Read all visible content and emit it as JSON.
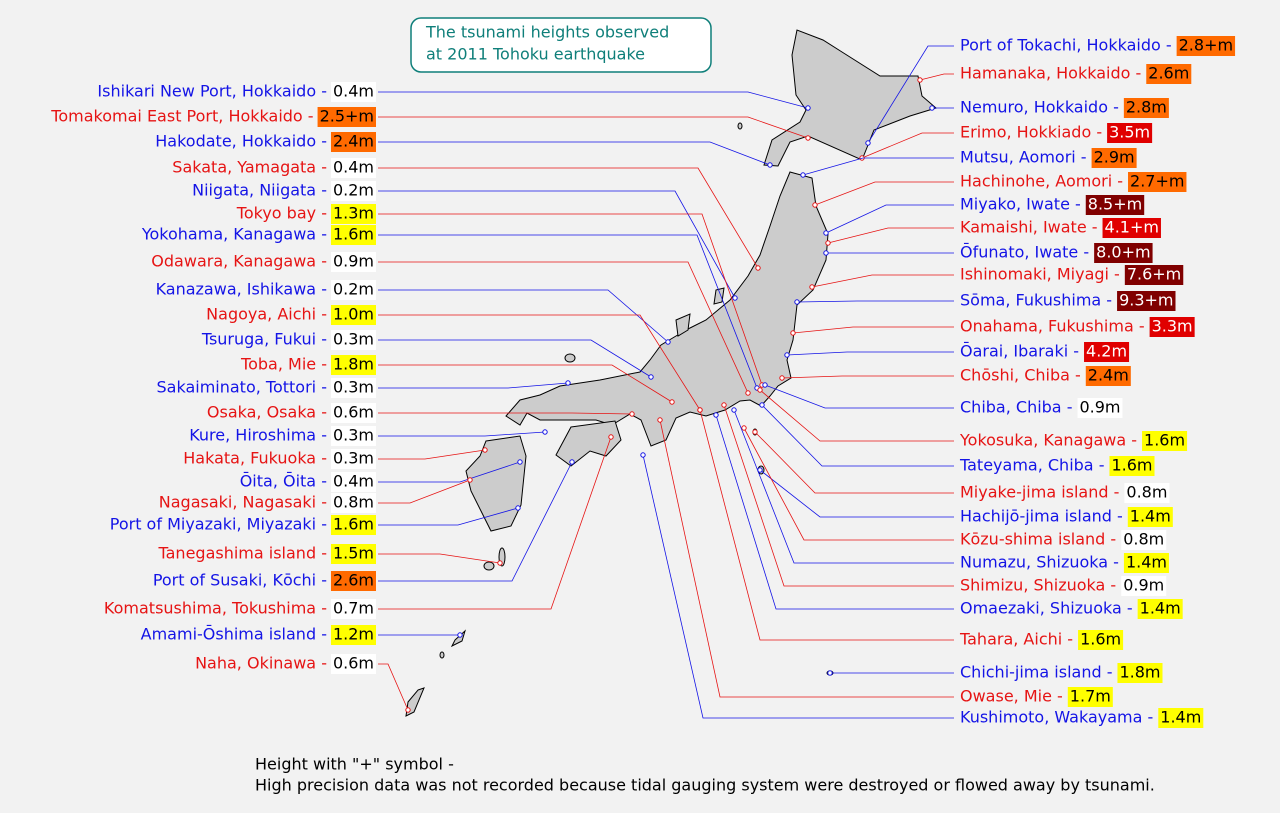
{
  "title": {
    "lines": [
      "The tsunami heights observed",
      "at 2011 Tohoku earthquake"
    ]
  },
  "left": [
    {
      "name": "Ishikari New Port, Hokkaido -",
      "height": "0.4m",
      "color": "#1414e6",
      "badge": "#ffffff"
    },
    {
      "name": "Tomakomai East Port, Hokkaido -",
      "height": "2.5+m",
      "color": "#e61414",
      "badge": "#ff6a00"
    },
    {
      "name": "Hakodate, Hokkaido -",
      "height": "2.4m",
      "color": "#1414e6",
      "badge": "#ff6a00"
    },
    {
      "name": "Sakata, Yamagata -",
      "height": "0.4m",
      "color": "#e61414",
      "badge": "#ffffff"
    },
    {
      "name": "Niigata, Niigata -",
      "height": "0.2m",
      "color": "#1414e6",
      "badge": "#ffffff"
    },
    {
      "name": "Tokyo bay -",
      "height": "1.3m",
      "color": "#e61414",
      "badge": "#ffff00"
    },
    {
      "name": "Yokohama, Kanagawa -",
      "height": "1.6m",
      "color": "#1414e6",
      "badge": "#ffff00"
    },
    {
      "name": "Odawara, Kanagawa -",
      "height": "0.9m",
      "color": "#e61414",
      "badge": "#ffffff"
    },
    {
      "name": "Kanazawa, Ishikawa -",
      "height": "0.2m",
      "color": "#1414e6",
      "badge": "#ffffff"
    },
    {
      "name": "Nagoya, Aichi -",
      "height": "1.0m",
      "color": "#e61414",
      "badge": "#ffff00"
    },
    {
      "name": "Tsuruga, Fukui -",
      "height": "0.3m",
      "color": "#1414e6",
      "badge": "#ffffff"
    },
    {
      "name": "Toba, Mie -",
      "height": "1.8m",
      "color": "#e61414",
      "badge": "#ffff00"
    },
    {
      "name": "Sakaiminato, Tottori -",
      "height": "0.3m",
      "color": "#1414e6",
      "badge": "#ffffff"
    },
    {
      "name": "Osaka, Osaka -",
      "height": "0.6m",
      "color": "#e61414",
      "badge": "#ffffff"
    },
    {
      "name": "Kure, Hiroshima -",
      "height": "0.3m",
      "color": "#1414e6",
      "badge": "#ffffff"
    },
    {
      "name": "Hakata, Fukuoka -",
      "height": "0.3m",
      "color": "#e61414",
      "badge": "#ffffff"
    },
    {
      "name": "Ōita, Ōita -",
      "height": "0.4m",
      "color": "#1414e6",
      "badge": "#ffffff"
    },
    {
      "name": "Nagasaki, Nagasaki -",
      "height": "0.8m",
      "color": "#e61414",
      "badge": "#ffffff"
    },
    {
      "name": "Port of Miyazaki, Miyazaki -",
      "height": "1.6m",
      "color": "#1414e6",
      "badge": "#ffff00"
    },
    {
      "name": "Tanegashima island -",
      "height": "1.5m",
      "color": "#e61414",
      "badge": "#ffff00"
    },
    {
      "name": "Port of Susaki, Kōchi -",
      "height": "2.6m",
      "color": "#1414e6",
      "badge": "#ff6a00"
    },
    {
      "name": "Komatsushima, Tokushima -",
      "height": "0.7m",
      "color": "#e61414",
      "badge": "#ffffff"
    },
    {
      "name": "Amami-Ōshima island -",
      "height": "1.2m",
      "color": "#1414e6",
      "badge": "#ffff00"
    },
    {
      "name": "Naha, Okinawa -",
      "height": "0.6m",
      "color": "#e61414",
      "badge": "#ffffff"
    }
  ],
  "right": [
    {
      "name": "Port of Tokachi, Hokkaido -",
      "height": "2.8+m",
      "color": "#1414e6",
      "badge": "#ff6a00"
    },
    {
      "name": "Hamanaka, Hokkaido -",
      "height": "2.6m",
      "color": "#e61414",
      "badge": "#ff6a00"
    },
    {
      "name": "Nemuro, Hokkaido -",
      "height": "2.8m",
      "color": "#1414e6",
      "badge": "#ff6a00"
    },
    {
      "name": "Erimo, Hokkiado -",
      "height": "3.5m",
      "color": "#e61414",
      "badge": "#e00000"
    },
    {
      "name": "Mutsu, Aomori -",
      "height": "2.9m",
      "color": "#1414e6",
      "badge": "#ff6a00"
    },
    {
      "name": "Hachinohe, Aomori -",
      "height": "2.7+m",
      "color": "#e61414",
      "badge": "#ff6a00"
    },
    {
      "name": "Miyako, Iwate -",
      "height": "8.5+m",
      "color": "#1414e6",
      "badge": "#800000"
    },
    {
      "name": "Kamaishi, Iwate -",
      "height": "4.1+m",
      "color": "#e61414",
      "badge": "#e00000"
    },
    {
      "name": "Ōfunato, Iwate -",
      "height": "8.0+m",
      "color": "#1414e6",
      "badge": "#800000"
    },
    {
      "name": "Ishinomaki, Miyagi -",
      "height": "7.6+m",
      "color": "#e61414",
      "badge": "#800000"
    },
    {
      "name": "Sōma, Fukushima -",
      "height": "9.3+m",
      "color": "#1414e6",
      "badge": "#800000"
    },
    {
      "name": "Onahama, Fukushima -",
      "height": "3.3m",
      "color": "#e61414",
      "badge": "#e00000"
    },
    {
      "name": "Ōarai, Ibaraki -",
      "height": "4.2m",
      "color": "#1414e6",
      "badge": "#e00000"
    },
    {
      "name": "Chōshi, Chiba -",
      "height": "2.4m",
      "color": "#e61414",
      "badge": "#ff6a00"
    },
    {
      "name": "Chiba, Chiba -",
      "height": "0.9m",
      "color": "#1414e6",
      "badge": "#ffffff"
    },
    {
      "name": "Yokosuka, Kanagawa -",
      "height": "1.6m",
      "color": "#e61414",
      "badge": "#ffff00"
    },
    {
      "name": "Tateyama, Chiba -",
      "height": "1.6m",
      "color": "#1414e6",
      "badge": "#ffff00"
    },
    {
      "name": "Miyake-jima island -",
      "height": "0.8m",
      "color": "#e61414",
      "badge": "#ffffff"
    },
    {
      "name": "Hachijō-jima island -",
      "height": "1.4m",
      "color": "#1414e6",
      "badge": "#ffff00"
    },
    {
      "name": "Kōzu-shima island -",
      "height": "0.8m",
      "color": "#e61414",
      "badge": "#ffffff"
    },
    {
      "name": "Numazu, Shizuoka -",
      "height": "1.4m",
      "color": "#1414e6",
      "badge": "#ffff00"
    },
    {
      "name": "Shimizu, Shizuoka -",
      "height": "0.9m",
      "color": "#e61414",
      "badge": "#ffffff"
    },
    {
      "name": "Omaezaki, Shizuoka -",
      "height": "1.4m",
      "color": "#1414e6",
      "badge": "#ffff00"
    },
    {
      "name": "Tahara, Aichi -",
      "height": "1.6m",
      "color": "#e61414",
      "badge": "#ffff00"
    },
    {
      "name": "Chichi-jima island -",
      "height": "1.8m",
      "color": "#1414e6",
      "badge": "#ffff00"
    },
    {
      "name": "Owase, Mie -",
      "height": "1.7m",
      "color": "#e61414",
      "badge": "#ffff00"
    },
    {
      "name": "Kushimoto, Wakayama -",
      "height": "1.4m",
      "color": "#1414e6",
      "badge": "#ffff00"
    }
  ],
  "note": {
    "lines": [
      "Height with \"+\" symbol -",
      "High precision data was not recorded because tidal gauging system were destroyed or flowed away by tsunami."
    ]
  }
}
